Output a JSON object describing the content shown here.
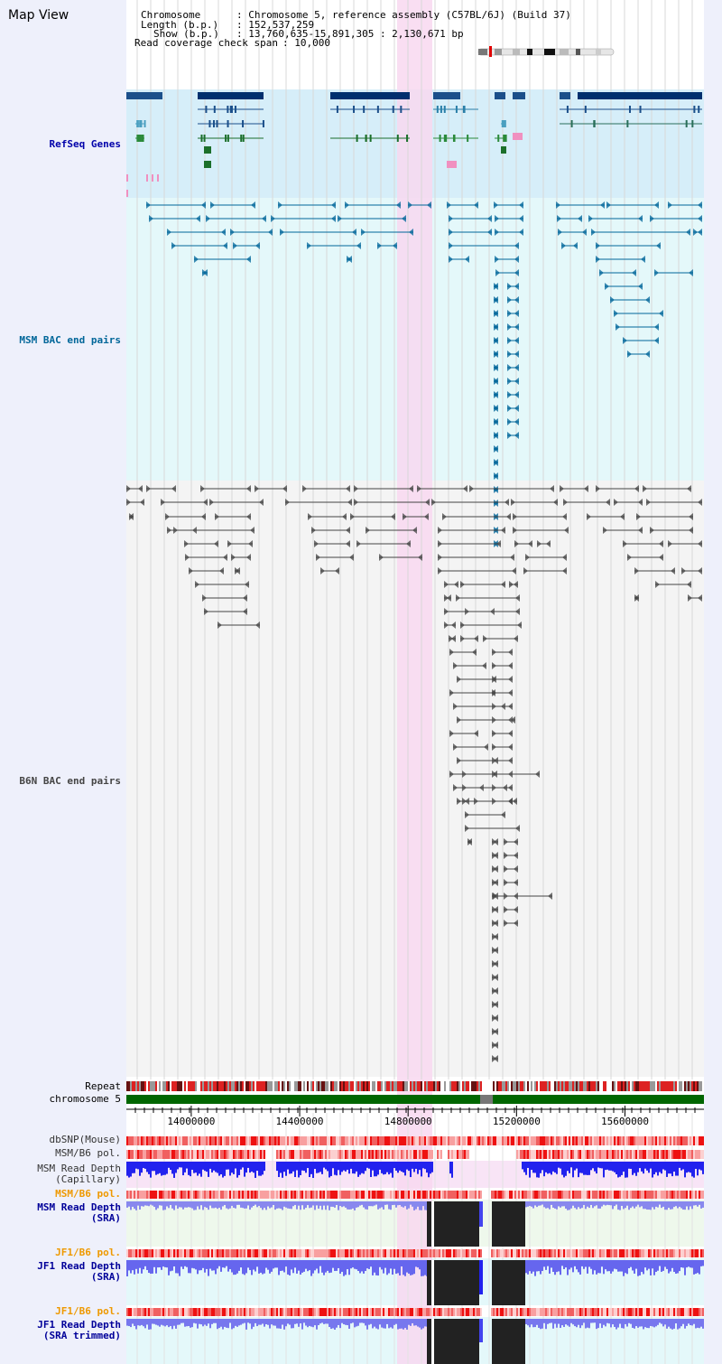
{
  "header": {
    "map_view": "Map View",
    "chromosome_label": "Chromosome",
    "chromosome_value": ": Chromosome 5, reference assembly (C57BL/6J) (Build 37)",
    "length_label": "Length (b.p.)",
    "length_value": ": 152,537,259",
    "show_label": "Show (b.p.)",
    "show_value": ": 13,760,635-15,891,305 : 2,130,671 bp",
    "coverage_label": "Read coverage check span",
    "coverage_value": ": 10,000"
  },
  "tracks": {
    "refseq": "RefSeq Genes",
    "msm_bac": "MSM BAC end pairs",
    "b6n_bac": "B6N BAC end pairs",
    "repeat": "Repeat",
    "chromosome": "chromosome 5",
    "dbsnp": "dbSNP(Mouse)",
    "msm_pol1": "MSM/B6 pol.",
    "msm_depth_cap": "MSM Read Depth\n(Capillary)",
    "msm_pol2": "MSM/B6 pol.",
    "msm_depth_sra": "MSM Read Depth\n(SRA)",
    "jf1_pol1": "JF1/B6 pol.",
    "jf1_depth_sra": "JF1 Read Depth\n(SRA)",
    "jf1_pol2": "JF1/B6 pol.",
    "jf1_depth_trim": "JF1 Read Depth\n(SRA trimmed)"
  },
  "axis": {
    "ticks": [
      "14000000",
      "14400000",
      "14800000",
      "15200000",
      "15600000"
    ],
    "tick_values": [
      14000000,
      14400000,
      14800000,
      15200000,
      15600000
    ],
    "range": [
      13760635,
      15891305
    ]
  },
  "highlight": {
    "start": 14760000,
    "end": 14890000
  },
  "colors": {
    "refseq": "#0000aa",
    "msm": "#006699",
    "b6n": "#444444",
    "pol_orange": "#ee9900",
    "depth_blue": "#000099"
  }
}
